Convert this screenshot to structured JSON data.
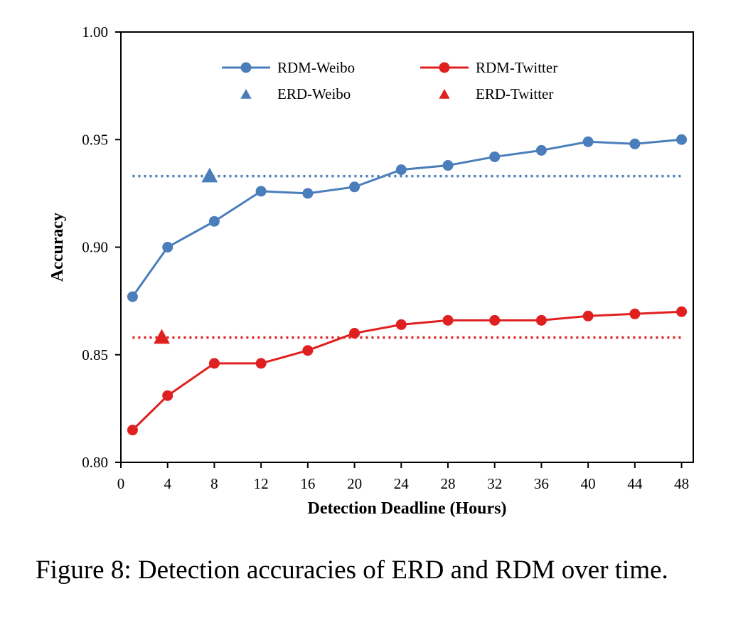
{
  "chart_data": {
    "type": "line",
    "title": "",
    "xlabel": "Detection Deadline (Hours)",
    "ylabel": "Accuracy",
    "xlim": [
      0,
      49
    ],
    "ylim": [
      0.8,
      1.0
    ],
    "xticks": [
      0,
      4,
      8,
      12,
      16,
      20,
      24,
      28,
      32,
      36,
      40,
      44,
      48
    ],
    "yticks": [
      0.8,
      0.85,
      0.9,
      0.95,
      1.0
    ],
    "ytick_labels": [
      "0.80",
      "0.85",
      "0.90",
      "0.95",
      "1.00"
    ],
    "grid": false,
    "legend_position": "top",
    "series": [
      {
        "name": "RDM-Weibo",
        "color": "#4a7ebb",
        "marker": "circle",
        "x": [
          1,
          4,
          8,
          12,
          16,
          20,
          24,
          28,
          32,
          36,
          40,
          44,
          48
        ],
        "values": [
          0.877,
          0.9,
          0.912,
          0.926,
          0.925,
          0.928,
          0.936,
          0.938,
          0.942,
          0.945,
          0.949,
          0.948,
          0.95
        ]
      },
      {
        "name": "RDM-Twitter",
        "color": "#e02020",
        "marker": "circle",
        "x": [
          1,
          4,
          8,
          12,
          16,
          20,
          24,
          28,
          32,
          36,
          40,
          44,
          48
        ],
        "values": [
          0.815,
          0.831,
          0.846,
          0.846,
          0.852,
          0.86,
          0.864,
          0.866,
          0.866,
          0.866,
          0.868,
          0.869,
          0.87
        ]
      },
      {
        "name": "ERD-Weibo",
        "color": "#4a7ebb",
        "marker": "triangle",
        "x": [
          7.6
        ],
        "values": [
          0.933
        ],
        "reference_line": {
          "y": 0.933,
          "x_range": [
            1,
            48
          ],
          "style": "dotted"
        }
      },
      {
        "name": "ERD-Twitter",
        "color": "#e02020",
        "marker": "triangle",
        "x": [
          3.5
        ],
        "values": [
          0.858
        ],
        "reference_line": {
          "y": 0.858,
          "x_range": [
            1,
            48
          ],
          "style": "dotted"
        }
      }
    ]
  },
  "caption": "Figure 8:  Detection accuracies of ERD and RDM over time."
}
